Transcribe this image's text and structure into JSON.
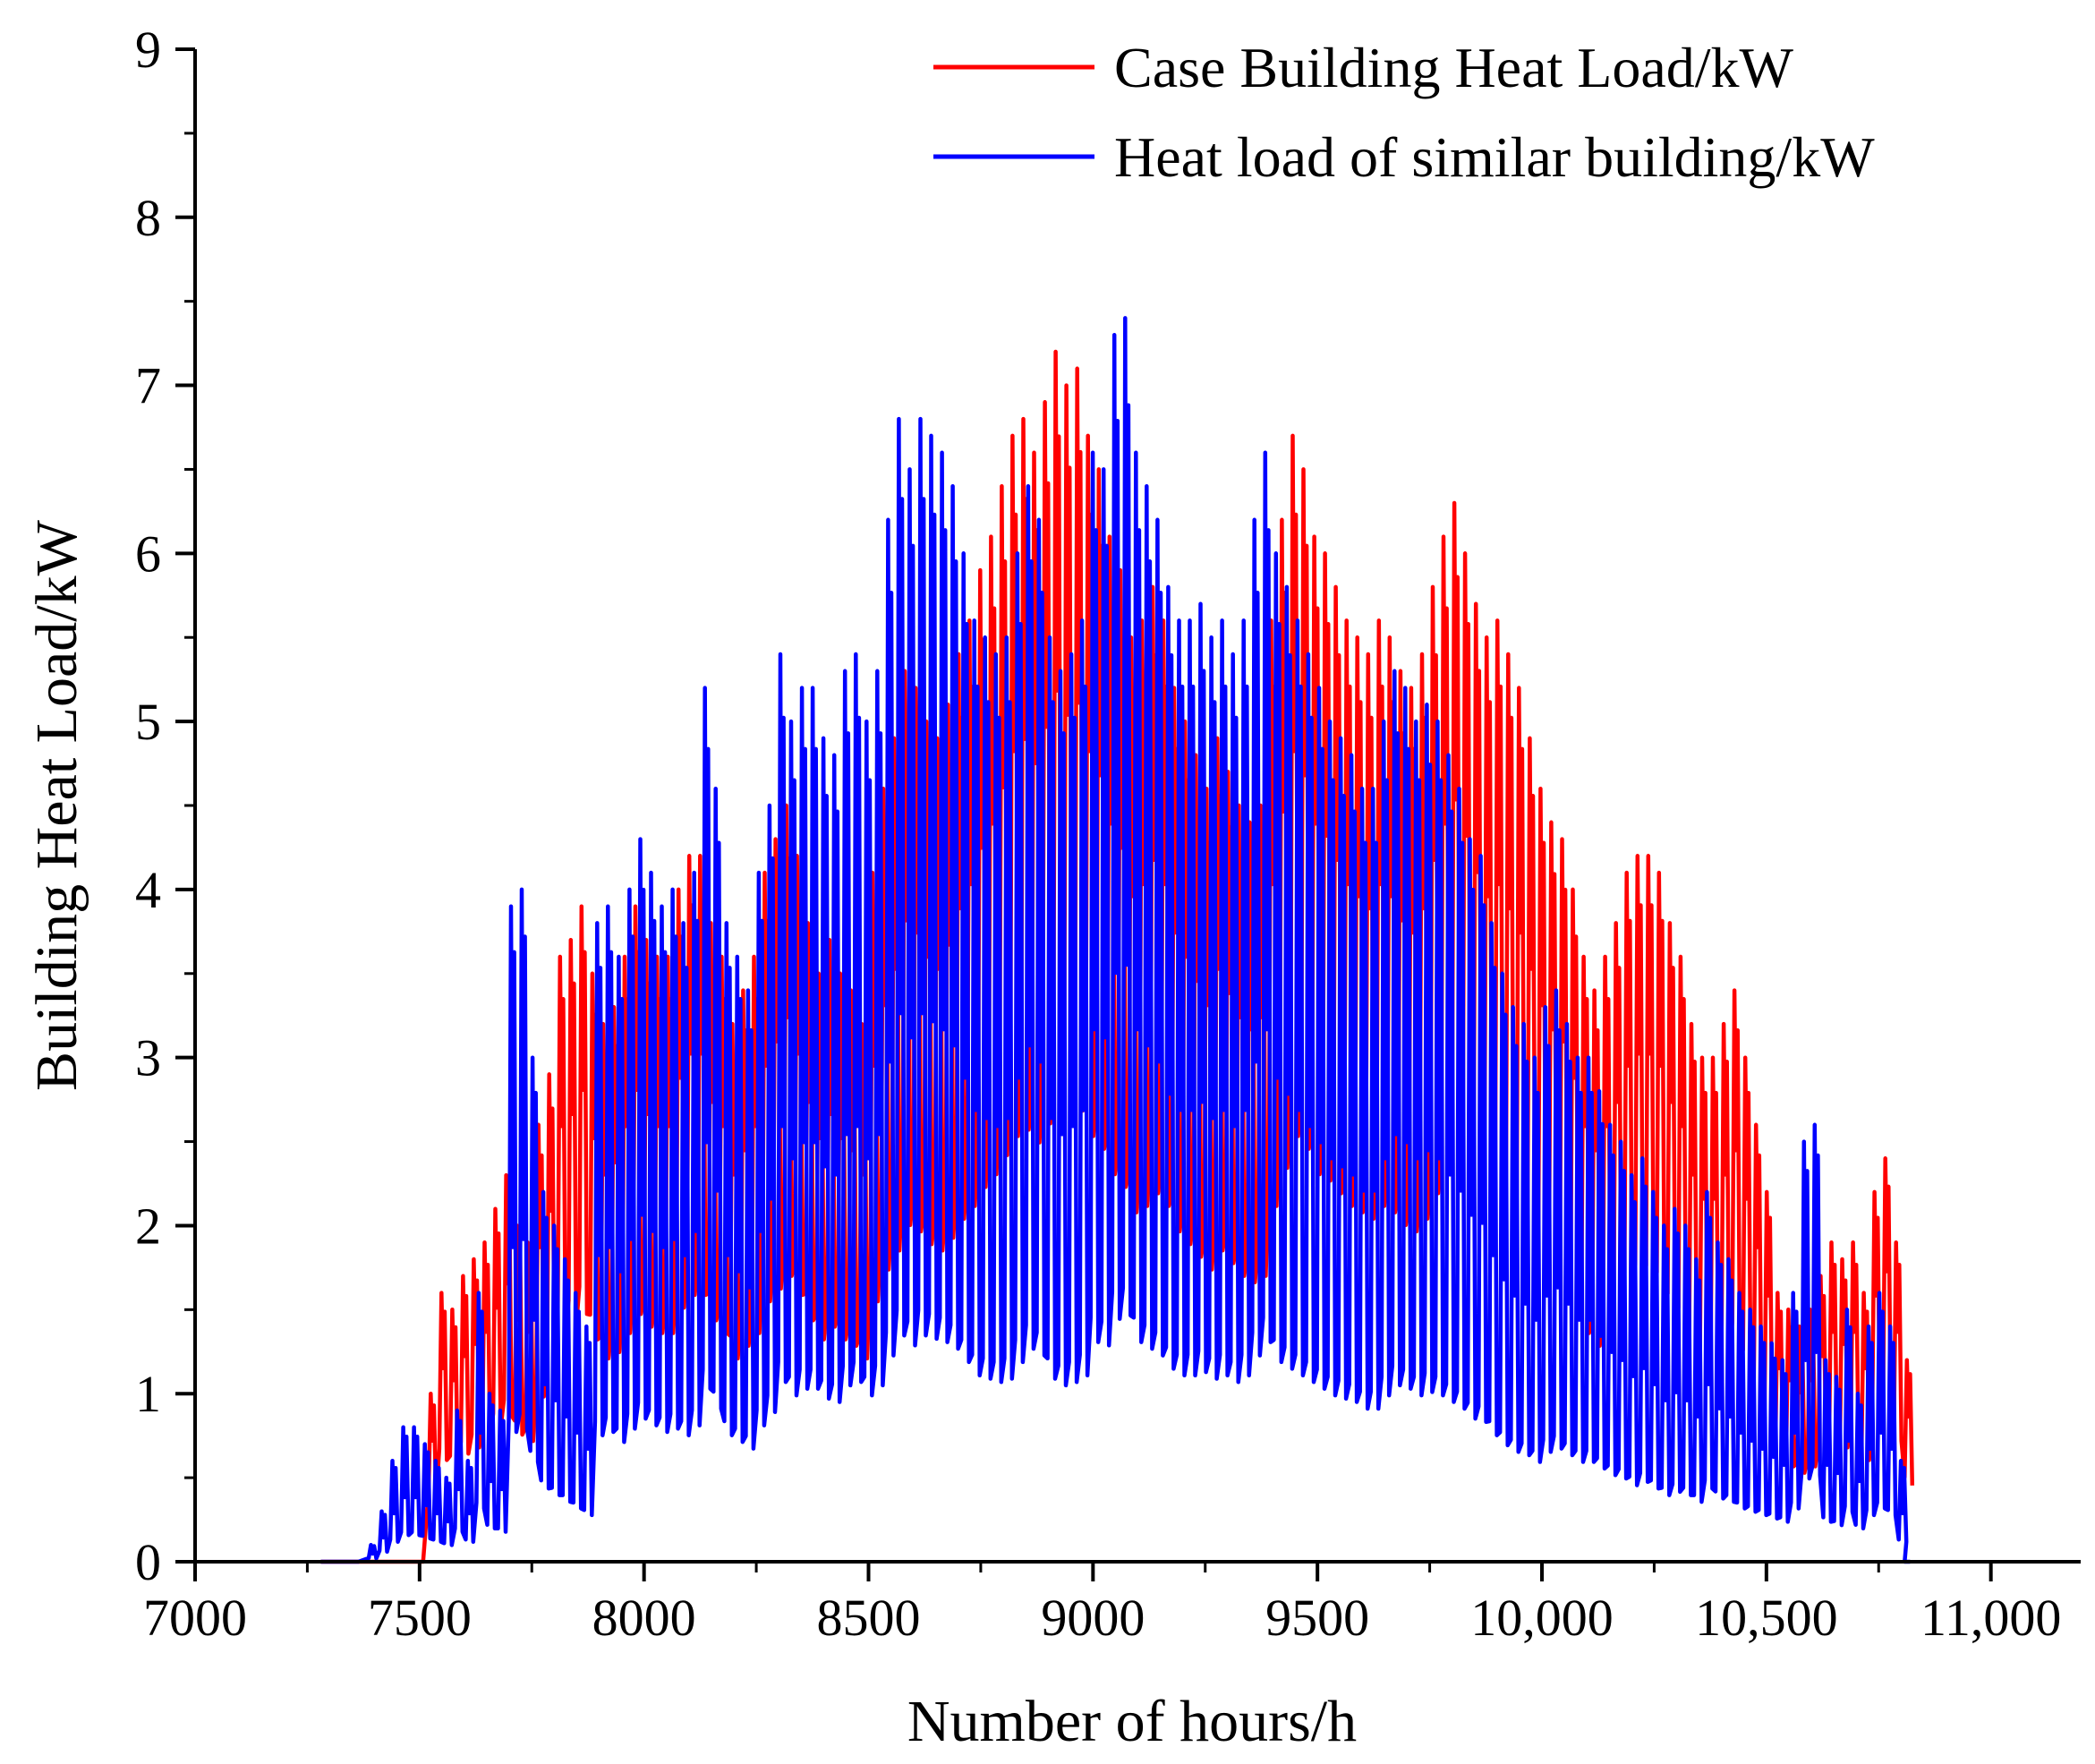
{
  "chart_data": {
    "type": "line",
    "title": "",
    "xlabel": "Number of hours/h",
    "ylabel": "Building Heat Load/kW",
    "xlim": [
      7000,
      11200
    ],
    "ylim": [
      0,
      9
    ],
    "x_ticks": [
      {
        "value": 7000,
        "label": "7000"
      },
      {
        "value": 7500,
        "label": "7500"
      },
      {
        "value": 8000,
        "label": "8000"
      },
      {
        "value": 8500,
        "label": "8500"
      },
      {
        "value": 9000,
        "label": "9000"
      },
      {
        "value": 9500,
        "label": "9500"
      },
      {
        "value": 10000,
        "label": "10,000"
      },
      {
        "value": 10500,
        "label": "10,500"
      },
      {
        "value": 11000,
        "label": "11,000"
      }
    ],
    "y_ticks": [
      {
        "value": 0,
        "label": "0"
      },
      {
        "value": 1,
        "label": "1"
      },
      {
        "value": 2,
        "label": "2"
      },
      {
        "value": 3,
        "label": "3"
      },
      {
        "value": 4,
        "label": "4"
      },
      {
        "value": 5,
        "label": "5"
      },
      {
        "value": 6,
        "label": "6"
      },
      {
        "value": 7,
        "label": "7"
      },
      {
        "value": 8,
        "label": "8"
      },
      {
        "value": 9,
        "label": "9"
      }
    ],
    "grid": false,
    "legend_position": "top-right",
    "x_start": 7280,
    "x_step": 24,
    "series": [
      {
        "name": "Case Building Heat Load/kW",
        "color": "#ff0000",
        "values": [
          0,
          0,
          0,
          0,
          0,
          0,
          0,
          0,
          0,
          0,
          1.0,
          1.6,
          1.5,
          1.7,
          1.8,
          1.9,
          2.1,
          2.3,
          2.0,
          1.9,
          2.6,
          2.9,
          3.6,
          3.7,
          3.9,
          3.5,
          3.2,
          3.3,
          3.6,
          3.9,
          3.7,
          3.6,
          3.6,
          4.0,
          4.2,
          4.2,
          3.8,
          3.6,
          3.2,
          3.4,
          3.6,
          4.1,
          4.3,
          4.5,
          4.2,
          3.8,
          3.5,
          3.7,
          3.5,
          3.4,
          3.2,
          4.1,
          4.6,
          4.9,
          5.3,
          5.2,
          5.0,
          4.9,
          5.1,
          5.4,
          5.6,
          5.9,
          6.1,
          6.4,
          6.7,
          6.8,
          6.6,
          6.9,
          7.2,
          7.0,
          7.1,
          6.7,
          6.5,
          6.1,
          5.9,
          5.5,
          5.6,
          5.8,
          5.6,
          5.2,
          5.0,
          4.8,
          4.6,
          4.9,
          4.7,
          4.5,
          4.4,
          4.5,
          5.6,
          6.2,
          6.7,
          6.5,
          6.1,
          6.0,
          5.8,
          5.6,
          5.5,
          5.4,
          5.6,
          5.5,
          5.3,
          5.2,
          5.4,
          5.8,
          6.1,
          6.3,
          6.0,
          5.7,
          5.5,
          5.6,
          5.4,
          5.2,
          4.9,
          4.6,
          4.4,
          4.3,
          4.0,
          3.6,
          3.4,
          3.6,
          3.8,
          4.1,
          4.2,
          4.2,
          4.1,
          3.8,
          3.6,
          3.2,
          3.0,
          3.0,
          3.2,
          3.4,
          3.0,
          2.6,
          2.2,
          1.6,
          1.5,
          1.4,
          1.5,
          1.7,
          1.9,
          1.8,
          1.9,
          1.6,
          2.2,
          2.4,
          1.9,
          1.2
        ]
      },
      {
        "name": "Heat load of similar building/kW",
        "color": "#0000ff",
        "values": [
          0,
          0,
          0,
          0,
          0.1,
          0.3,
          0.6,
          0.8,
          0.8,
          0.7,
          0.6,
          0.5,
          0.9,
          0.6,
          1.6,
          1.0,
          0.9,
          3.9,
          4.0,
          3.0,
          2.2,
          2.0,
          1.8,
          1.6,
          1.4,
          3.8,
          3.9,
          3.6,
          4.0,
          4.3,
          4.1,
          3.9,
          4.0,
          3.8,
          4.1,
          5.2,
          4.6,
          3.8,
          3.6,
          3.4,
          4.1,
          4.5,
          5.4,
          5.0,
          5.2,
          5.2,
          4.9,
          4.8,
          5.3,
          5.4,
          5.0,
          5.3,
          6.2,
          6.8,
          6.5,
          6.8,
          6.7,
          6.6,
          6.4,
          6.0,
          5.6,
          5.5,
          5.4,
          5.5,
          6.0,
          6.4,
          6.2,
          5.5,
          5.3,
          5.4,
          5.6,
          6.6,
          6.5,
          7.3,
          7.4,
          6.6,
          6.4,
          6.2,
          5.8,
          5.6,
          5.6,
          5.7,
          5.5,
          5.6,
          5.4,
          5.6,
          6.2,
          6.6,
          6.0,
          5.8,
          5.6,
          5.4,
          5.2,
          5.0,
          4.9,
          4.8,
          4.6,
          4.6,
          5.0,
          5.3,
          5.2,
          5.0,
          5.1,
          5.0,
          4.8,
          4.6,
          4.3,
          4.2,
          3.8,
          3.5,
          3.3,
          3.2,
          3.0,
          3.3,
          3.4,
          3.2,
          3.0,
          3.0,
          2.8,
          2.6,
          2.5,
          2.3,
          2.4,
          2.2,
          2.0,
          2.1,
          2.0,
          1.8,
          2.2,
          1.9,
          1.8,
          1.6,
          1.5,
          1.4,
          1.3,
          1.2,
          1.6,
          2.5,
          2.6,
          1.2,
          1.1,
          1.5,
          1.0,
          1.4,
          1.6,
          1.4,
          0.6,
          0
        ]
      }
    ]
  }
}
